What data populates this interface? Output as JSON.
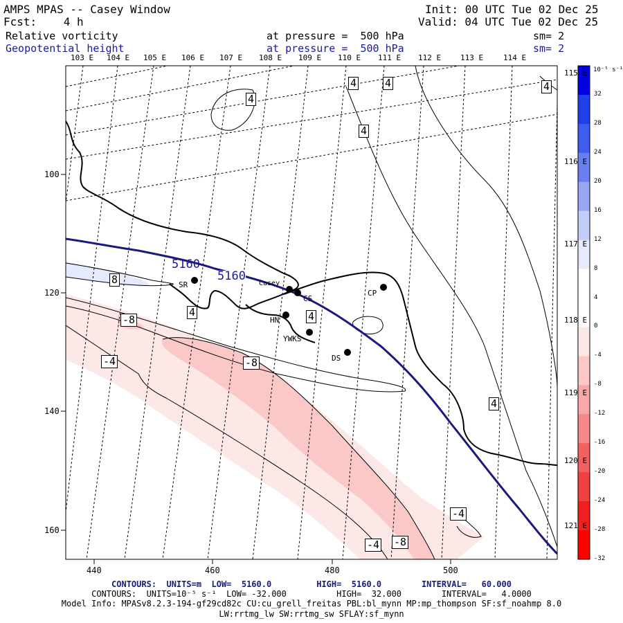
{
  "header": {
    "title": "AMPS MPAS -- Casey Window",
    "forecast": "Fcst:    4 h",
    "init": "Init: 00 UTC Tue 02 Dec 25",
    "valid": "Valid: 04 UTC Tue 02 Dec 25",
    "field1": {
      "name": "Relative vorticity",
      "level": "at pressure =  500 hPa",
      "sm": "sm= 2"
    },
    "field2": {
      "name": "Geopotential height",
      "level": "at pressure =  500 hPa",
      "sm": "sm= 2"
    }
  },
  "lon_labels_top": [
    "103 E",
    "104 E",
    "105 E",
    "106 E",
    "107 E",
    "108 E",
    "109 E",
    "110 E",
    "111 E",
    "112 E",
    "113 E",
    "114 E"
  ],
  "lon_labels_right": [
    "115 E",
    "116 E",
    "117 E",
    "118 E",
    "119 E",
    "120 E",
    "121 E"
  ],
  "y_ticks": [
    "100",
    "120",
    "140",
    "160"
  ],
  "x_ticks": [
    "440",
    "460",
    "480",
    "500"
  ],
  "stations": [
    {
      "id": "SR",
      "label": "SR"
    },
    {
      "id": "Casey",
      "label": "Casey"
    },
    {
      "id": "CS",
      "label": "CS"
    },
    {
      "id": "CP",
      "label": "CP"
    },
    {
      "id": "HN",
      "label": "HN"
    },
    {
      "id": "YWKS",
      "label": "YWKS"
    },
    {
      "id": "DS",
      "label": "DS"
    }
  ],
  "contour_labels": {
    "height": "5160",
    "vorticity": [
      "4",
      "4",
      "4",
      "4",
      "4",
      "4",
      "4",
      "8",
      "-8",
      "-4",
      "-8",
      "-4",
      "-4",
      "-8"
    ]
  },
  "colorbar": {
    "unit": "10⁻⁵ s⁻¹",
    "ticks": [
      "32",
      "28",
      "24",
      "20",
      "16",
      "12",
      "8",
      "4",
      "0",
      "-4",
      "-8",
      "-12",
      "-16",
      "-20",
      "-24",
      "-28",
      "-32"
    ],
    "colors": [
      "#0000e0",
      "#1f3fe8",
      "#3f5cf0",
      "#6a7fee",
      "#98a6f2",
      "#c4ccf8",
      "#e6eaff",
      "#ffffff",
      "#ffffff",
      "#fde8e8",
      "#fbc8c8",
      "#f8a8a8",
      "#f58888",
      "#f26060",
      "#f04040",
      "#ee2020",
      "#ff0000"
    ]
  },
  "footer": {
    "line1": "CONTOURS:  UNITS=m  LOW=  5160.0         HIGH=  5160.0        INTERVAL=   60.000",
    "line2": "CONTOURS:  UNITS=10⁻⁵ s⁻¹  LOW= -32.000          HIGH=  32.000        INTERVAL=   4.0000",
    "line3": "Model Info: MPASv8.2.3-194-gf29cd82c CU:cu_grell_freitas PBL:bl_mynn MP:mp_thompson SF:sf_noahmp 8.0",
    "line4": "LW:rrtmg_lw SW:rrtmg_sw SFLAY:sf_mynn"
  }
}
